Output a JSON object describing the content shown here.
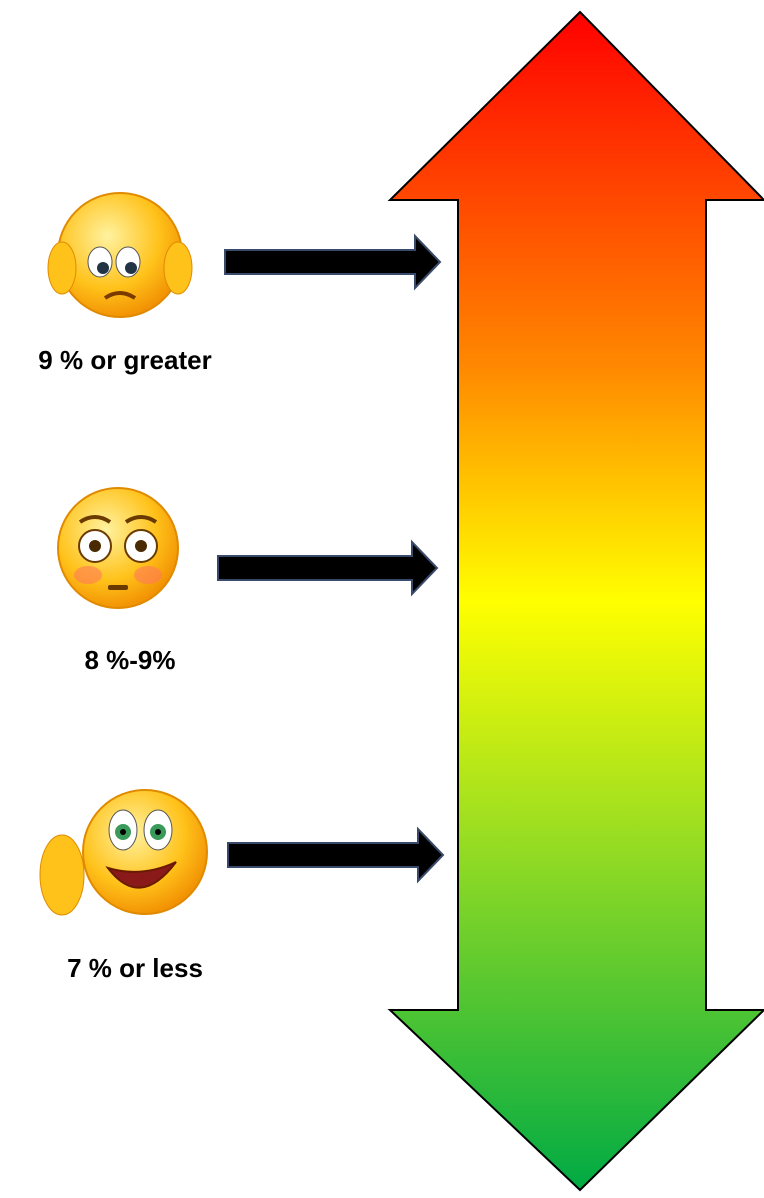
{
  "levels": [
    {
      "label": "9 % or greater"
    },
    {
      "label": "8 %-9%"
    },
    {
      "label": "7 % or less"
    }
  ]
}
